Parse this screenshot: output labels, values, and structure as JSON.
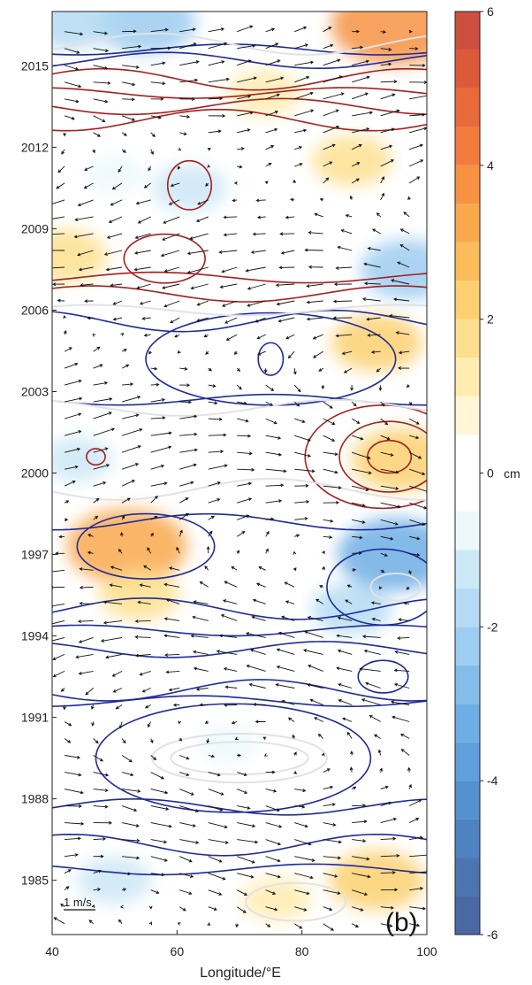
{
  "chart_data": {
    "type": "heatmap",
    "panel_label": "(b)",
    "xlabel": "Longitude/°E",
    "ylabel": "",
    "xlim": [
      40,
      100
    ],
    "ylim": [
      1983,
      2017
    ],
    "xticks": [
      40,
      60,
      80,
      100
    ],
    "yticks": [
      1985,
      1988,
      1991,
      1994,
      1997,
      2000,
      2003,
      2006,
      2009,
      2012,
      2015
    ],
    "colorbar": {
      "unit": "cm",
      "range": [
        -6,
        6
      ],
      "ticks": [
        -6,
        -4,
        -2,
        0,
        2,
        4,
        6
      ],
      "levels": [
        -6,
        -5.5,
        -5,
        -4.5,
        -4,
        -3.5,
        -3,
        -2.5,
        -2,
        -1.5,
        -1,
        -0.5,
        0.5,
        1,
        1.5,
        2,
        2.5,
        3,
        3.5,
        4,
        4.5,
        5,
        5.5,
        6
      ]
    },
    "vector_reference": {
      "label": "1 m/s",
      "magnitude": 1
    },
    "anomaly_blobs": [
      {
        "x": 52,
        "y": 1997.3,
        "value": 3.2
      },
      {
        "x": 54,
        "y": 1995.5,
        "value": 1.6
      },
      {
        "x": 95,
        "y": 1997.0,
        "value": -3.0
      },
      {
        "x": 88,
        "y": 1995.0,
        "value": -1.6
      },
      {
        "x": 96,
        "y": 2000.5,
        "value": 2.4
      },
      {
        "x": 92,
        "y": 2004.8,
        "value": 2.0
      },
      {
        "x": 42,
        "y": 2008.0,
        "value": 1.8
      },
      {
        "x": 97,
        "y": 2007.5,
        "value": -2.2
      },
      {
        "x": 62,
        "y": 2010.5,
        "value": -1.4
      },
      {
        "x": 88,
        "y": 2011.5,
        "value": 1.6
      },
      {
        "x": 74,
        "y": 2014.0,
        "value": 1.4
      },
      {
        "x": 95,
        "y": 2016.5,
        "value": 3.5
      },
      {
        "x": 55,
        "y": 2016.6,
        "value": -2.4
      },
      {
        "x": 43,
        "y": 2016.6,
        "value": -1.8
      },
      {
        "x": 92,
        "y": 1985.0,
        "value": 2.2
      },
      {
        "x": 76,
        "y": 1984.3,
        "value": 1.2
      },
      {
        "x": 50,
        "y": 1985.0,
        "value": -1.4
      },
      {
        "x": 44,
        "y": 2000.5,
        "value": -1.2
      },
      {
        "x": 68,
        "y": 1990.0,
        "value": -0.8
      },
      {
        "x": 50,
        "y": 2011.0,
        "value": -0.8
      }
    ],
    "contours": [
      {
        "sign": "negative",
        "kind": "line",
        "y": 2015.6
      },
      {
        "sign": "negative",
        "kind": "line",
        "y": 2015.2
      },
      {
        "sign": "positive",
        "kind": "line",
        "y": 2014.5
      },
      {
        "sign": "positive",
        "kind": "line",
        "y": 2014.0
      },
      {
        "sign": "positive",
        "kind": "line",
        "y": 2013.5
      },
      {
        "sign": "positive",
        "kind": "line",
        "y": 2013.0
      },
      {
        "sign": "positive",
        "kind": "line",
        "y": 2007.2
      },
      {
        "sign": "positive",
        "kind": "line",
        "y": 2006.6
      },
      {
        "sign": "negative",
        "kind": "line",
        "y": 2005.6
      },
      {
        "sign": "negative",
        "kind": "line",
        "y": 2002.7
      },
      {
        "sign": "negative",
        "kind": "line",
        "y": 1998.2
      },
      {
        "sign": "negative",
        "kind": "line",
        "y": 1995.0
      },
      {
        "sign": "negative",
        "kind": "line",
        "y": 1994.2
      },
      {
        "sign": "negative",
        "kind": "line",
        "y": 1993.5
      },
      {
        "sign": "negative",
        "kind": "line",
        "y": 1992.0
      },
      {
        "sign": "negative",
        "kind": "line",
        "y": 1991.6
      },
      {
        "sign": "negative",
        "kind": "line",
        "y": 1987.7
      },
      {
        "sign": "negative",
        "kind": "line",
        "y": 1986.3
      },
      {
        "sign": "negative",
        "kind": "line",
        "y": 1985.4
      },
      {
        "sign": "positive",
        "kind": "ellipse",
        "x": 62,
        "y": 2010.6,
        "rx": 3.5,
        "ry": 0.9
      },
      {
        "sign": "positive",
        "kind": "ellipse",
        "x": 58,
        "y": 2007.9,
        "rx": 6.5,
        "ry": 0.9
      },
      {
        "sign": "negative",
        "kind": "ellipse",
        "x": 75,
        "y": 2004.2,
        "rx": 2.0,
        "ry": 0.6
      },
      {
        "sign": "negative",
        "kind": "ellipse",
        "x": 75,
        "y": 2004.2,
        "rx": 20,
        "ry": 1.7
      },
      {
        "sign": "positive",
        "kind": "ellipse",
        "x": 94,
        "y": 2000.6,
        "rx": 3.5,
        "ry": 0.6
      },
      {
        "sign": "positive",
        "kind": "ellipse",
        "x": 94,
        "y": 2000.6,
        "rx": 8.0,
        "ry": 1.3
      },
      {
        "sign": "positive",
        "kind": "ellipse",
        "x": 93,
        "y": 2000.6,
        "rx": 12.5,
        "ry": 1.9
      },
      {
        "sign": "positive",
        "kind": "ellipse",
        "x": 47,
        "y": 2000.6,
        "rx": 1.5,
        "ry": 0.3
      },
      {
        "sign": "negative",
        "kind": "ellipse",
        "x": 93,
        "y": 1995.8,
        "rx": 9.0,
        "ry": 1.4
      },
      {
        "sign": "negative",
        "kind": "ellipse",
        "x": 93,
        "y": 1992.5,
        "rx": 4.0,
        "ry": 0.6
      },
      {
        "sign": "negative",
        "kind": "ellipse",
        "x": 69,
        "y": 1989.5,
        "rx": 22,
        "ry": 2.0
      },
      {
        "sign": "negative",
        "kind": "ellipse",
        "x": 55,
        "y": 1997.3,
        "rx": 11,
        "ry": 1.2
      },
      {
        "sign": "zero",
        "kind": "ellipse",
        "x": 70,
        "y": 1989.5,
        "rx": 11,
        "ry": 0.6
      },
      {
        "sign": "zero",
        "kind": "ellipse",
        "x": 70,
        "y": 1989.5,
        "rx": 14,
        "ry": 0.9
      },
      {
        "sign": "zero",
        "kind": "ellipse",
        "x": 95,
        "y": 1995.8,
        "rx": 4,
        "ry": 0.5
      },
      {
        "sign": "zero",
        "kind": "ellipse",
        "x": 79,
        "y": 1984.2,
        "rx": 8,
        "ry": 0.7
      },
      {
        "sign": "zero",
        "kind": "line",
        "y": 2015.8
      },
      {
        "sign": "zero",
        "kind": "line",
        "y": 2006.0
      },
      {
        "sign": "zero",
        "kind": "line",
        "y": 2002.4
      },
      {
        "sign": "zero",
        "kind": "line",
        "y": 1999.4
      }
    ]
  }
}
